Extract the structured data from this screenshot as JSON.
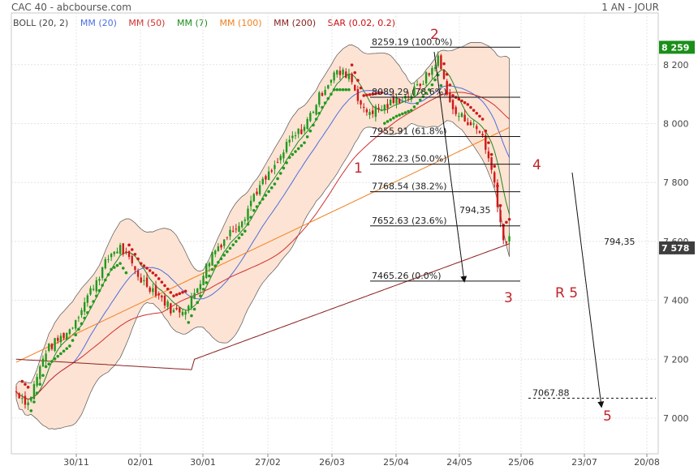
{
  "header": {
    "title": "CAC 40 - abcbourse.com",
    "period": "1 AN - JOUR"
  },
  "legend": [
    {
      "label": "BOLL (20, 2)",
      "color": "#444444"
    },
    {
      "label": "MM (20)",
      "color": "#4a6fe0"
    },
    {
      "label": "MM (50)",
      "color": "#d03030"
    },
    {
      "label": "MM (7)",
      "color": "#1f8a1f"
    },
    {
      "label": "MM (100)",
      "color": "#f08020"
    },
    {
      "label": "MM (200)",
      "color": "#8a2020"
    },
    {
      "label": "SAR (0.02, 0.2)",
      "color": "#cc1010"
    }
  ],
  "colors": {
    "up": "#1f9a1f",
    "down": "#cc1a1a",
    "boll_fill": "#fde3d3",
    "price_badge": "#3e3e3e",
    "high_badge": "#1a8f1a"
  },
  "chart_data": {
    "type": "candlestick",
    "title": "CAC 40 - abcbourse.com",
    "period": "1 AN - JOUR",
    "ylim": [
      6880,
      8350
    ],
    "y_ticks": [
      {
        "value": 7000,
        "label": "7 000"
      },
      {
        "value": 7200,
        "label": "7 200"
      },
      {
        "value": 7400,
        "label": "7 400"
      },
      {
        "value": 7600,
        "label": "7 600"
      },
      {
        "value": 7800,
        "label": "7 800"
      },
      {
        "value": 8000,
        "label": "8 000"
      },
      {
        "value": 8200,
        "label": "8 200"
      }
    ],
    "x_ticks": [
      "30/11",
      "02/01",
      "30/01",
      "27/02",
      "26/03",
      "25/04",
      "24/05",
      "25/06",
      "23/07",
      "20/08"
    ],
    "last_price": {
      "value": 7578,
      "label": "7 578"
    },
    "high_marker": {
      "value": 8259,
      "label": "8 259"
    },
    "fibonacci": [
      {
        "value": 8259.19,
        "label": "8259.19  (100.0%)"
      },
      {
        "value": 8089.29,
        "label": "8089.29  (78.6%)"
      },
      {
        "value": 7955.91,
        "label": "7955.91  (61.8%)"
      },
      {
        "value": 7862.23,
        "label": "7862.23  (50.0%)"
      },
      {
        "value": 7768.54,
        "label": "7768.54  (38.2%)"
      },
      {
        "value": 7652.63,
        "label": "7652.63  (23.6%)"
      },
      {
        "value": 7465.26,
        "label": "7465.26  (0.0%)"
      }
    ],
    "target": {
      "value": 7067.88,
      "label": "7067.88"
    },
    "waves": [
      "1",
      "2",
      "3",
      "4",
      "5"
    ],
    "annotations": {
      "move_1": "794,35",
      "move_2": "794,35",
      "r5": "R 5"
    },
    "legend_placement": "top-left"
  }
}
